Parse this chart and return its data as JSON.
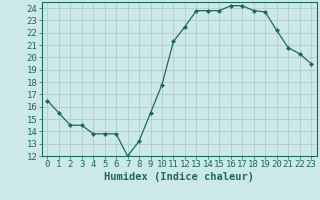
{
  "x": [
    0,
    1,
    2,
    3,
    4,
    5,
    6,
    7,
    8,
    9,
    10,
    11,
    12,
    13,
    14,
    15,
    16,
    17,
    18,
    19,
    20,
    21,
    22,
    23
  ],
  "y": [
    16.5,
    15.5,
    14.5,
    14.5,
    13.8,
    13.8,
    13.8,
    12.0,
    13.2,
    15.5,
    17.8,
    21.3,
    22.5,
    23.8,
    23.8,
    23.8,
    24.2,
    24.2,
    23.8,
    23.7,
    22.2,
    20.8,
    20.3,
    19.5
  ],
  "line_color": "#1a6b5e",
  "marker": "D",
  "marker_size": 2,
  "bg_color": "#cce8e8",
  "grid_color": "#aac8c8",
  "xlabel": "Humidex (Indice chaleur)",
  "ylim": [
    12,
    24.5
  ],
  "yticks": [
    12,
    13,
    14,
    15,
    16,
    17,
    18,
    19,
    20,
    21,
    22,
    23,
    24
  ],
  "xticks": [
    0,
    1,
    2,
    3,
    4,
    5,
    6,
    7,
    8,
    9,
    10,
    11,
    12,
    13,
    14,
    15,
    16,
    17,
    18,
    19,
    20,
    21,
    22,
    23
  ],
  "tick_color": "#1a6b5e",
  "axis_color": "#1a6b5e",
  "font_color": "#1a6b5e",
  "tick_fontsize": 6.5,
  "xlabel_fontsize": 7.5
}
